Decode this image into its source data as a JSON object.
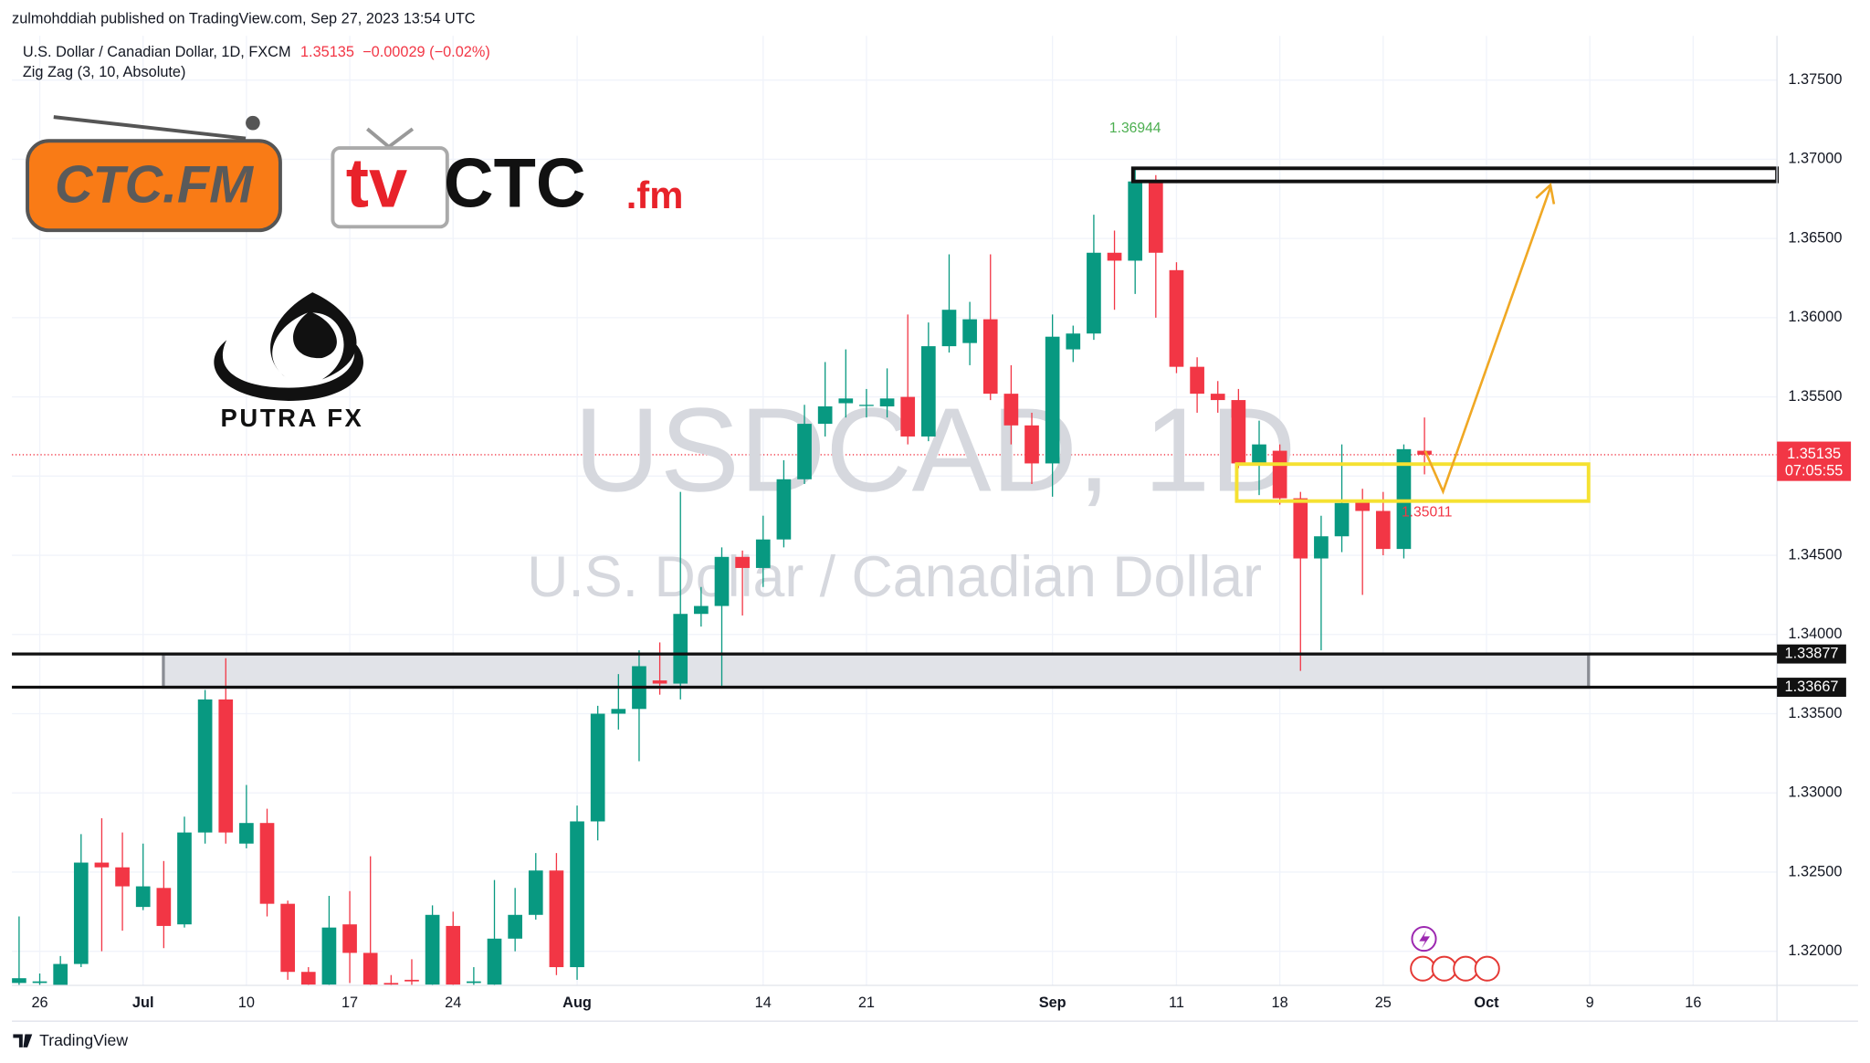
{
  "header": {
    "published": "zulmohddiah published on TradingView.com, Sep 27, 2023 13:54 UTC",
    "symbol": "U.S. Dollar / Canadian Dollar, 1D, FXCM",
    "change": "−0.00029 (−0.02%)",
    "indicator": "Zig Zag (3, 10, Absolute)"
  },
  "logos": {
    "ctc": "CTC.FM",
    "tv_prefix": "tv",
    "tv_main": "CTC",
    "tv_suffix": ".fm",
    "putra": "PUTRA FX"
  },
  "watermark": {
    "symbol": "USDCAD, 1D",
    "name": "U.S. Dollar / Canadian Dollar"
  },
  "footer": "TradingView",
  "chart_data": {
    "type": "candlestick",
    "x": [
      "Jun 23",
      "Jun 26",
      "Jun 27",
      "Jun 28",
      "Jun 29",
      "Jun 30",
      "Jul 3",
      "Jul 4",
      "Jul 5",
      "Jul 6",
      "Jul 7",
      "Jul 10",
      "Jul 11",
      "Jul 12",
      "Jul 13",
      "Jul 14",
      "Jul 17",
      "Jul 18",
      "Jul 19",
      "Jul 20",
      "Jul 21",
      "Jul 24",
      "Jul 25",
      "Jul 26",
      "Jul 27",
      "Jul 28",
      "Jul 31",
      "Aug 1",
      "Aug 2",
      "Aug 3",
      "Aug 4",
      "Aug 7",
      "Aug 8",
      "Aug 9",
      "Aug 10",
      "Aug 11",
      "Aug 14",
      "Aug 15",
      "Aug 16",
      "Aug 17",
      "Aug 18",
      "Aug 21",
      "Aug 22",
      "Aug 23",
      "Aug 24",
      "Aug 25",
      "Aug 28",
      "Aug 29",
      "Aug 30",
      "Aug 31",
      "Sep 1",
      "Sep 4",
      "Sep 5",
      "Sep 6",
      "Sep 7",
      "Sep 8",
      "Sep 11",
      "Sep 12",
      "Sep 13",
      "Sep 14",
      "Sep 15",
      "Sep 18",
      "Sep 19",
      "Sep 20",
      "Sep 21",
      "Sep 22",
      "Sep 25",
      "Sep 26",
      "Sep 27",
      "Sep 28",
      "Sep 29",
      "Oct 2",
      "Oct 3",
      "Oct 4",
      "Oct 5",
      "Oct 6",
      "Oct 9",
      "Oct 10",
      "Oct 11",
      "Oct 12",
      "Oct 13",
      "Oct 16",
      "Oct 17",
      "Oct 18",
      "Oct 19",
      "Oct 20"
    ],
    "open": [
      1.318,
      1.318,
      1.3178,
      1.3192,
      1.3256,
      1.3253,
      1.3228,
      1.324,
      1.3217,
      1.3275,
      1.3359,
      1.3268,
      1.3281,
      1.323,
      1.3187,
      1.3179,
      1.3217,
      1.3199,
      1.318,
      1.3182,
      1.3179,
      1.3216,
      1.318,
      1.3179,
      1.3208,
      1.3223,
      1.3251,
      1.319,
      1.3282,
      1.335,
      1.3353,
      1.3371,
      1.3369,
      1.3413,
      1.3418,
      1.3449,
      1.3442,
      1.346,
      1.3498,
      1.3533,
      1.3546,
      1.3545,
      1.3544,
      1.355,
      1.3525,
      1.3582,
      1.3584,
      1.3599,
      1.3552,
      1.3532,
      1.3508,
      1.358,
      1.359,
      1.3641,
      1.3636,
      1.3686,
      1.363,
      1.3569,
      1.3552,
      1.3548,
      1.3508,
      1.3516,
      1.3486,
      1.3448,
      1.3462,
      1.3484,
      1.3478,
      1.3454,
      1.3516,
      null,
      null,
      null,
      null,
      null,
      null,
      null,
      null,
      null,
      null,
      null,
      null,
      null,
      null,
      null,
      null,
      null
    ],
    "high": [
      1.3222,
      1.3186,
      1.3197,
      1.3274,
      1.3284,
      1.3275,
      1.3268,
      1.3257,
      1.3285,
      1.3365,
      1.3385,
      1.3305,
      1.329,
      1.3232,
      1.319,
      1.3235,
      1.3238,
      1.326,
      1.3185,
      1.3195,
      1.3229,
      1.3225,
      1.319,
      1.3245,
      1.324,
      1.3262,
      1.3262,
      1.3292,
      1.3355,
      1.3375,
      1.339,
      1.3395,
      1.349,
      1.343,
      1.3455,
      1.3453,
      1.3475,
      1.351,
      1.3545,
      1.3572,
      1.358,
      1.3555,
      1.3568,
      1.3602,
      1.3597,
      1.364,
      1.361,
      1.364,
      1.357,
      1.354,
      1.3602,
      1.3595,
      1.3665,
      1.3655,
      1.36944,
      1.369,
      1.3635,
      1.3575,
      1.356,
      1.3555,
      1.3535,
      1.352,
      1.349,
      1.3475,
      1.352,
      1.3492,
      1.349,
      1.352,
      1.3537,
      null,
      null,
      null,
      null,
      null,
      null,
      null,
      null,
      null,
      null,
      null,
      null,
      null,
      null,
      null,
      null,
      null
    ],
    "low": [
      1.3176,
      1.3177,
      1.3176,
      1.319,
      1.32,
      1.3213,
      1.3226,
      1.3202,
      1.3215,
      1.3268,
      1.3268,
      1.3265,
      1.3222,
      1.3182,
      1.3178,
      1.3178,
      1.318,
      1.3178,
      1.3178,
      1.3178,
      1.3178,
      1.3178,
      1.3178,
      1.3178,
      1.32,
      1.322,
      1.3185,
      1.3182,
      1.327,
      1.334,
      1.332,
      1.3362,
      1.3359,
      1.3405,
      1.3367,
      1.3412,
      1.343,
      1.3455,
      1.3495,
      1.3525,
      1.3537,
      1.3537,
      1.3537,
      1.352,
      1.3522,
      1.3578,
      1.357,
      1.3548,
      1.352,
      1.3495,
      1.3487,
      1.3572,
      1.3586,
      1.3605,
      1.3615,
      1.36,
      1.3565,
      1.354,
      1.354,
      1.3505,
      1.3488,
      1.3482,
      1.3377,
      1.339,
      1.3452,
      1.3425,
      1.345,
      1.3448,
      1.35011,
      null,
      null,
      null,
      null,
      null,
      null,
      null,
      null,
      null,
      null,
      null,
      null,
      null,
      null,
      null,
      null,
      null
    ],
    "close": [
      1.3183,
      1.3181,
      1.3192,
      1.3256,
      1.3253,
      1.3241,
      1.3241,
      1.3216,
      1.3275,
      1.3359,
      1.3275,
      1.3281,
      1.323,
      1.3187,
      1.3179,
      1.3215,
      1.3199,
      1.3179,
      1.3179,
      1.3181,
      1.3223,
      1.3179,
      1.3181,
      1.3208,
      1.3223,
      1.3251,
      1.319,
      1.3282,
      1.335,
      1.3353,
      1.338,
      1.3369,
      1.3413,
      1.3418,
      1.3449,
      1.3442,
      1.346,
      1.3498,
      1.3533,
      1.3544,
      1.3549,
      1.3545,
      1.3549,
      1.3525,
      1.3582,
      1.3605,
      1.3599,
      1.3552,
      1.3532,
      1.3508,
      1.3588,
      1.359,
      1.3641,
      1.3636,
      1.3686,
      1.3641,
      1.3569,
      1.3552,
      1.3548,
      1.3508,
      1.352,
      1.3486,
      1.3448,
      1.3462,
      1.3483,
      1.3478,
      1.3454,
      1.3517,
      1.35135,
      null,
      null,
      null,
      null,
      null,
      null,
      null,
      null,
      null,
      null,
      null,
      null,
      null,
      null,
      null,
      null,
      null
    ],
    "up_color": "#089981",
    "down_color": "#f23645",
    "ylim": [
      1.31785,
      1.37779
    ],
    "yticks": [
      {
        "value": 1.32,
        "label": "1.32000"
      },
      {
        "value": 1.325,
        "label": "1.32500"
      },
      {
        "value": 1.33,
        "label": "1.33000"
      },
      {
        "value": 1.335,
        "label": "1.33500"
      },
      {
        "value": 1.34,
        "label": "1.34000"
      },
      {
        "value": 1.345,
        "label": "1.34500"
      },
      {
        "value": 1.35,
        "label": "1.35000"
      },
      {
        "value": 1.355,
        "label": "1.35500"
      },
      {
        "value": 1.36,
        "label": "1.36000"
      },
      {
        "value": 1.365,
        "label": "1.36500"
      },
      {
        "value": 1.37,
        "label": "1.37000"
      },
      {
        "value": 1.375,
        "label": "1.37500"
      }
    ],
    "xticks": [
      {
        "value": "Jun 26",
        "label": "26"
      },
      {
        "value": "Jul 3",
        "label": "Jul"
      },
      {
        "value": "Jul 10",
        "label": "10"
      },
      {
        "value": "Jul 17",
        "label": "17"
      },
      {
        "value": "Jul 24",
        "label": "24"
      },
      {
        "value": "Aug 1",
        "label": "Aug"
      },
      {
        "value": "Aug 14",
        "label": "14"
      },
      {
        "value": "Aug 21",
        "label": "21"
      },
      {
        "value": "Sep 1",
        "label": "Sep"
      },
      {
        "value": "Sep 11",
        "label": "11"
      },
      {
        "value": "Sep 18",
        "label": "18"
      },
      {
        "value": "Sep 25",
        "label": "25"
      },
      {
        "value": "Oct 2",
        "label": "Oct"
      },
      {
        "value": "Oct 9",
        "label": "9"
      },
      {
        "value": "Oct 16",
        "label": "16"
      }
    ],
    "grid": true,
    "last_price": 1.35135,
    "countdown": "07:05:55",
    "levels": [
      1.33877,
      1.33667
    ]
  }
}
